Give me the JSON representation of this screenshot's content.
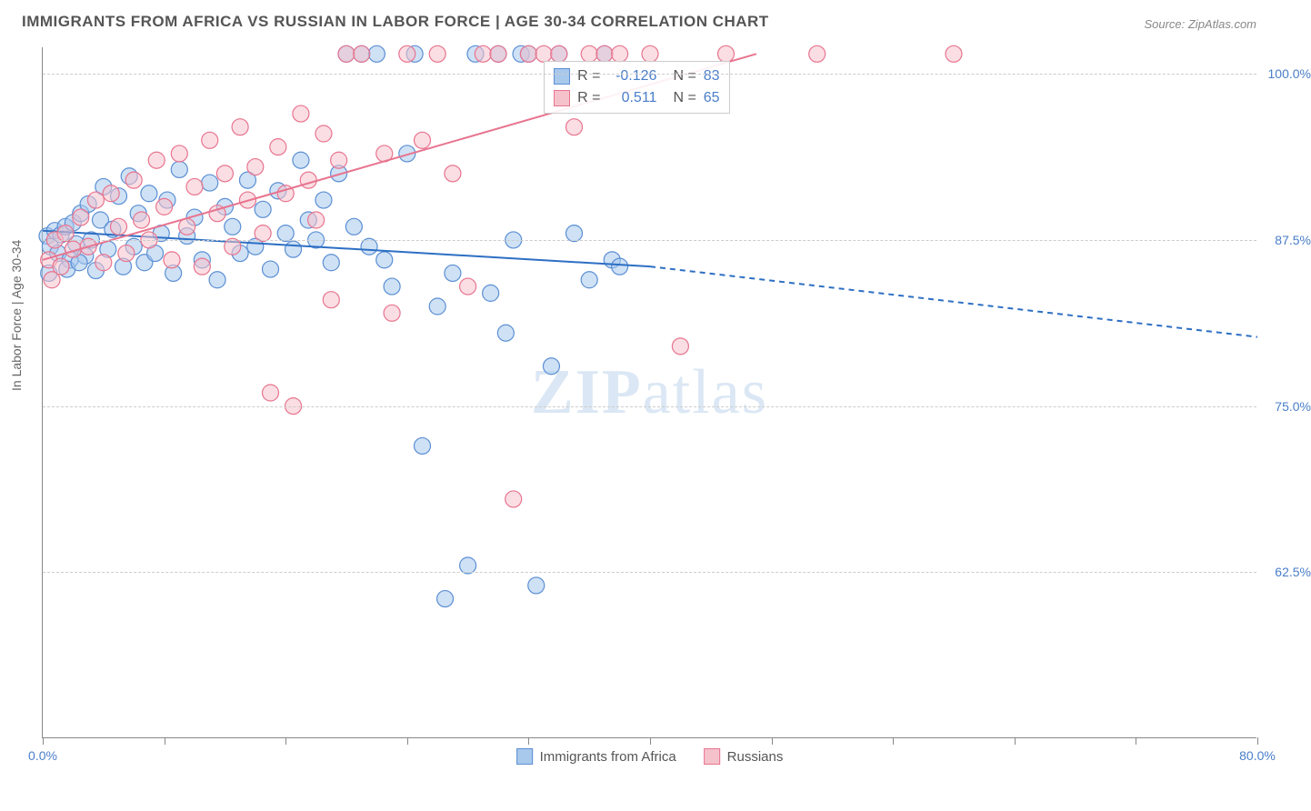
{
  "title": "IMMIGRANTS FROM AFRICA VS RUSSIAN IN LABOR FORCE | AGE 30-34 CORRELATION CHART",
  "source": "Source: ZipAtlas.com",
  "y_axis_label": "In Labor Force | Age 30-34",
  "watermark_a": "ZIP",
  "watermark_b": "atlas",
  "chart": {
    "type": "scatter",
    "xlim": [
      0,
      80
    ],
    "ylim": [
      50,
      102
    ],
    "x_ticks": [
      0,
      80
    ],
    "x_tick_labels": [
      "0.0%",
      "80.0%"
    ],
    "x_minor_ticks": [
      8,
      16,
      24,
      32,
      40,
      48,
      56,
      64,
      72
    ],
    "y_ticks": [
      62.5,
      75.0,
      87.5,
      100.0
    ],
    "y_tick_labels": [
      "62.5%",
      "75.0%",
      "87.5%",
      "100.0%"
    ],
    "grid_color": "#cccccc",
    "background": "#ffffff",
    "series": [
      {
        "name": "Immigrants from Africa",
        "color_fill": "#a8c8ec",
        "color_stroke": "#5b8fd4",
        "marker_radius": 9,
        "fill_opacity": 0.55,
        "points": [
          [
            0.3,
            87.8
          ],
          [
            0.5,
            87.0
          ],
          [
            0.8,
            88.2
          ],
          [
            1.0,
            86.5
          ],
          [
            1.2,
            87.9
          ],
          [
            1.5,
            88.5
          ],
          [
            1.8,
            86.0
          ],
          [
            2.0,
            88.8
          ],
          [
            2.2,
            87.2
          ],
          [
            2.5,
            89.5
          ],
          [
            2.8,
            86.3
          ],
          [
            3.0,
            90.2
          ],
          [
            3.2,
            87.5
          ],
          [
            3.5,
            85.2
          ],
          [
            3.8,
            89.0
          ],
          [
            4.0,
            91.5
          ],
          [
            4.3,
            86.8
          ],
          [
            4.6,
            88.3
          ],
          [
            5.0,
            90.8
          ],
          [
            5.3,
            85.5
          ],
          [
            5.7,
            92.3
          ],
          [
            6.0,
            87.0
          ],
          [
            6.3,
            89.5
          ],
          [
            6.7,
            85.8
          ],
          [
            7.0,
            91.0
          ],
          [
            7.4,
            86.5
          ],
          [
            7.8,
            88.0
          ],
          [
            8.2,
            90.5
          ],
          [
            8.6,
            85.0
          ],
          [
            9.0,
            92.8
          ],
          [
            9.5,
            87.8
          ],
          [
            10.0,
            89.2
          ],
          [
            10.5,
            86.0
          ],
          [
            11.0,
            91.8
          ],
          [
            11.5,
            84.5
          ],
          [
            12.0,
            90.0
          ],
          [
            12.5,
            88.5
          ],
          [
            13.0,
            86.5
          ],
          [
            13.5,
            92.0
          ],
          [
            14.0,
            87.0
          ],
          [
            14.5,
            89.8
          ],
          [
            15.0,
            85.3
          ],
          [
            15.5,
            91.2
          ],
          [
            16.0,
            88.0
          ],
          [
            16.5,
            86.8
          ],
          [
            17.0,
            93.5
          ],
          [
            17.5,
            89.0
          ],
          [
            18.0,
            87.5
          ],
          [
            18.5,
            90.5
          ],
          [
            19.0,
            85.8
          ],
          [
            19.5,
            92.5
          ],
          [
            20.0,
            101.5
          ],
          [
            20.5,
            88.5
          ],
          [
            21.0,
            101.5
          ],
          [
            21.5,
            87.0
          ],
          [
            22.0,
            101.5
          ],
          [
            22.5,
            86.0
          ],
          [
            23.0,
            84.0
          ],
          [
            24.0,
            94.0
          ],
          [
            24.5,
            101.5
          ],
          [
            25.0,
            72.0
          ],
          [
            26.0,
            82.5
          ],
          [
            26.5,
            60.5
          ],
          [
            27.0,
            85.0
          ],
          [
            28.0,
            63.0
          ],
          [
            28.5,
            101.5
          ],
          [
            29.5,
            83.5
          ],
          [
            30.0,
            101.5
          ],
          [
            30.5,
            80.5
          ],
          [
            31.0,
            87.5
          ],
          [
            31.5,
            101.5
          ],
          [
            32.0,
            101.5
          ],
          [
            32.5,
            61.5
          ],
          [
            33.5,
            78.0
          ],
          [
            34.0,
            101.5
          ],
          [
            35.0,
            88.0
          ],
          [
            36.0,
            84.5
          ],
          [
            37.0,
            101.5
          ],
          [
            37.5,
            86.0
          ],
          [
            38.0,
            85.5
          ],
          [
            0.4,
            85.0
          ],
          [
            1.6,
            85.3
          ],
          [
            2.4,
            85.8
          ]
        ],
        "trend": {
          "solid": [
            [
              0,
              88.2
            ],
            [
              40,
              85.5
            ]
          ],
          "dashed": [
            [
              40,
              85.5
            ],
            [
              80,
              80.2
            ]
          ],
          "color": "#2d6fc4",
          "width": 2
        },
        "R": "-0.126",
        "N": "83"
      },
      {
        "name": "Russians",
        "color_fill": "#f5c2cc",
        "color_stroke": "#e8748f",
        "marker_radius": 9,
        "fill_opacity": 0.55,
        "points": [
          [
            0.4,
            86.0
          ],
          [
            0.8,
            87.5
          ],
          [
            1.2,
            85.5
          ],
          [
            1.5,
            88.0
          ],
          [
            2.0,
            86.8
          ],
          [
            2.5,
            89.2
          ],
          [
            3.0,
            87.0
          ],
          [
            3.5,
            90.5
          ],
          [
            4.0,
            85.8
          ],
          [
            4.5,
            91.0
          ],
          [
            5.0,
            88.5
          ],
          [
            5.5,
            86.5
          ],
          [
            6.0,
            92.0
          ],
          [
            6.5,
            89.0
          ],
          [
            7.0,
            87.5
          ],
          [
            7.5,
            93.5
          ],
          [
            8.0,
            90.0
          ],
          [
            8.5,
            86.0
          ],
          [
            9.0,
            94.0
          ],
          [
            9.5,
            88.5
          ],
          [
            10.0,
            91.5
          ],
          [
            10.5,
            85.5
          ],
          [
            11.0,
            95.0
          ],
          [
            11.5,
            89.5
          ],
          [
            12.0,
            92.5
          ],
          [
            12.5,
            87.0
          ],
          [
            13.0,
            96.0
          ],
          [
            13.5,
            90.5
          ],
          [
            14.0,
            93.0
          ],
          [
            14.5,
            88.0
          ],
          [
            15.0,
            76.0
          ],
          [
            15.5,
            94.5
          ],
          [
            16.0,
            91.0
          ],
          [
            16.5,
            75.0
          ],
          [
            17.0,
            97.0
          ],
          [
            17.5,
            92.0
          ],
          [
            18.0,
            89.0
          ],
          [
            18.5,
            95.5
          ],
          [
            19.0,
            83.0
          ],
          [
            19.5,
            93.5
          ],
          [
            20.0,
            101.5
          ],
          [
            21.0,
            101.5
          ],
          [
            22.5,
            94.0
          ],
          [
            23.0,
            82.0
          ],
          [
            24.0,
            101.5
          ],
          [
            25.0,
            95.0
          ],
          [
            26.0,
            101.5
          ],
          [
            27.0,
            92.5
          ],
          [
            28.0,
            84.0
          ],
          [
            29.0,
            101.5
          ],
          [
            30.0,
            101.5
          ],
          [
            31.0,
            68.0
          ],
          [
            32.0,
            101.5
          ],
          [
            33.0,
            101.5
          ],
          [
            34.0,
            101.5
          ],
          [
            35.0,
            96.0
          ],
          [
            36.0,
            101.5
          ],
          [
            37.0,
            101.5
          ],
          [
            38.0,
            101.5
          ],
          [
            40.0,
            101.5
          ],
          [
            42.0,
            79.5
          ],
          [
            45.0,
            101.5
          ],
          [
            51.0,
            101.5
          ],
          [
            60.0,
            101.5
          ],
          [
            0.6,
            84.5
          ]
        ],
        "trend": {
          "solid": [
            [
              0,
              86.0
            ],
            [
              47,
              101.5
            ]
          ],
          "dashed": null,
          "color": "#e8748f",
          "width": 2
        },
        "R": "0.511",
        "N": "65"
      }
    ]
  },
  "legend_bottom": [
    {
      "label": "Immigrants from Africa",
      "fill": "#a8c8ec",
      "stroke": "#5b8fd4"
    },
    {
      "label": "Russians",
      "fill": "#f5c2cc",
      "stroke": "#e8748f"
    }
  ]
}
